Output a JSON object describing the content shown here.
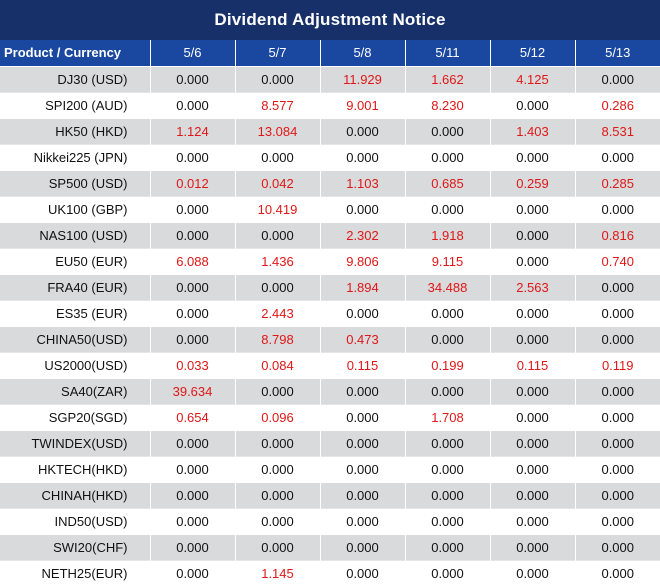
{
  "title": "Dividend Adjustment Notice",
  "header": {
    "product_label": "Product / Currency",
    "dates": [
      "5/6",
      "5/7",
      "5/8",
      "5/11",
      "5/12",
      "5/13"
    ]
  },
  "colors": {
    "title_bg": "#17306a",
    "header_bg": "#1a48a0",
    "positive": "#e01717",
    "zero": "#111111",
    "row_shade": "#d9dadc"
  },
  "rows": [
    {
      "product": "DJ30 (USD)",
      "values": [
        "0.000",
        "0.000",
        "11.929",
        "1.662",
        "4.125",
        "0.000"
      ]
    },
    {
      "product": "SPI200 (AUD)",
      "values": [
        "0.000",
        "8.577",
        "9.001",
        "8.230",
        "0.000",
        "0.286"
      ]
    },
    {
      "product": "HK50 (HKD)",
      "values": [
        "1.124",
        "13.084",
        "0.000",
        "0.000",
        "1.403",
        "8.531"
      ]
    },
    {
      "product": "Nikkei225 (JPN)",
      "values": [
        "0.000",
        "0.000",
        "0.000",
        "0.000",
        "0.000",
        "0.000"
      ]
    },
    {
      "product": "SP500 (USD)",
      "values": [
        "0.012",
        "0.042",
        "1.103",
        "0.685",
        "0.259",
        "0.285"
      ]
    },
    {
      "product": "UK100 (GBP)",
      "values": [
        "0.000",
        "10.419",
        "0.000",
        "0.000",
        "0.000",
        "0.000"
      ]
    },
    {
      "product": "NAS100 (USD)",
      "values": [
        "0.000",
        "0.000",
        "2.302",
        "1.918",
        "0.000",
        "0.816"
      ]
    },
    {
      "product": "EU50 (EUR)",
      "values": [
        "6.088",
        "1.436",
        "9.806",
        "9.115",
        "0.000",
        "0.740"
      ]
    },
    {
      "product": "FRA40 (EUR)",
      "values": [
        "0.000",
        "0.000",
        "1.894",
        "34.488",
        "2.563",
        "0.000"
      ]
    },
    {
      "product": "ES35 (EUR)",
      "values": [
        "0.000",
        "2.443",
        "0.000",
        "0.000",
        "0.000",
        "0.000"
      ]
    },
    {
      "product": "CHINA50(USD)",
      "values": [
        "0.000",
        "8.798",
        "0.473",
        "0.000",
        "0.000",
        "0.000"
      ]
    },
    {
      "product": "US2000(USD)",
      "values": [
        "0.033",
        "0.084",
        "0.115",
        "0.199",
        "0.115",
        "0.119"
      ]
    },
    {
      "product": "SA40(ZAR)",
      "values": [
        "39.634",
        "0.000",
        "0.000",
        "0.000",
        "0.000",
        "0.000"
      ]
    },
    {
      "product": "SGP20(SGD)",
      "values": [
        "0.654",
        "0.096",
        "0.000",
        "1.708",
        "0.000",
        "0.000"
      ]
    },
    {
      "product": "TWINDEX(USD)",
      "values": [
        "0.000",
        "0.000",
        "0.000",
        "0.000",
        "0.000",
        "0.000"
      ]
    },
    {
      "product": "HKTECH(HKD)",
      "values": [
        "0.000",
        "0.000",
        "0.000",
        "0.000",
        "0.000",
        "0.000"
      ]
    },
    {
      "product": "CHINAH(HKD)",
      "values": [
        "0.000",
        "0.000",
        "0.000",
        "0.000",
        "0.000",
        "0.000"
      ]
    },
    {
      "product": "IND50(USD)",
      "values": [
        "0.000",
        "0.000",
        "0.000",
        "0.000",
        "0.000",
        "0.000"
      ]
    },
    {
      "product": "SWI20(CHF)",
      "values": [
        "0.000",
        "0.000",
        "0.000",
        "0.000",
        "0.000",
        "0.000"
      ]
    },
    {
      "product": "NETH25(EUR)",
      "values": [
        "0.000",
        "1.145",
        "0.000",
        "0.000",
        "0.000",
        "0.000"
      ]
    }
  ]
}
